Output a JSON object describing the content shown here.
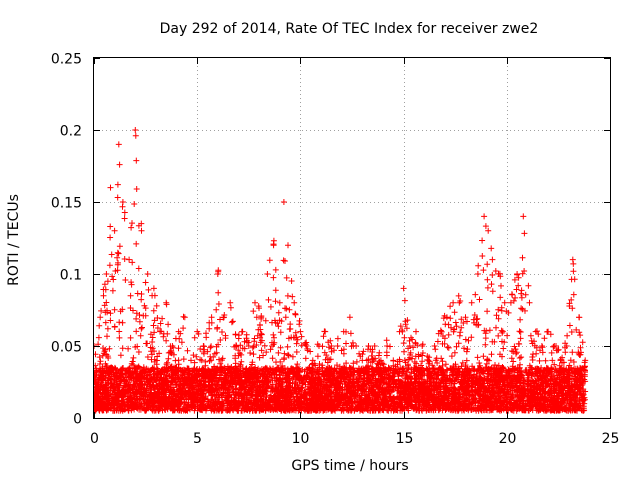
{
  "chart_data": {
    "type": "scatter",
    "title": "Day 292 of 2014, Rate Of TEC Index for receiver zwe2",
    "xlabel": "GPS time / hours",
    "ylabel": "ROTI / TECUs",
    "xlim": [
      0,
      25
    ],
    "ylim": [
      0,
      0.25
    ],
    "xticks": [
      "0",
      "5",
      "10",
      "15",
      "20",
      "25"
    ],
    "yticks": [
      "0",
      "0.05",
      "0.1",
      "0.15",
      "0.2",
      "0.25"
    ],
    "grid": true,
    "marker": "+",
    "series": [
      {
        "name": "ROTI",
        "color": "#ff0000",
        "envelope": {
          "x": [
            0.0,
            0.3,
            0.6,
            0.8,
            1.0,
            1.2,
            1.4,
            1.7,
            2.0,
            2.3,
            2.6,
            2.9,
            3.2,
            3.5,
            3.8,
            4.1,
            4.4,
            4.7,
            5.0,
            5.3,
            5.7,
            5.8,
            6.0,
            6.3,
            6.6,
            6.9,
            7.2,
            7.5,
            7.8,
            8.1,
            8.4,
            8.7,
            9.0,
            9.2,
            9.4,
            9.7,
            10.0,
            10.3,
            10.6,
            10.9,
            11.2,
            11.5,
            11.8,
            12.1,
            12.4,
            12.7,
            13.0,
            13.3,
            13.6,
            13.9,
            14.2,
            14.5,
            14.8,
            15.0,
            15.3,
            15.6,
            15.9,
            16.2,
            16.5,
            16.8,
            17.1,
            17.4,
            17.7,
            18.0,
            18.3,
            18.6,
            18.9,
            19.1,
            19.3,
            19.6,
            19.9,
            20.2,
            20.5,
            20.8,
            21.1,
            21.4,
            21.7,
            22.0,
            22.3,
            22.6,
            22.9,
            23.2,
            23.5,
            23.8
          ],
          "ymax": [
            0.05,
            0.07,
            0.1,
            0.16,
            0.13,
            0.19,
            0.15,
            0.11,
            0.2,
            0.13,
            0.1,
            0.09,
            0.06,
            0.08,
            0.05,
            0.06,
            0.07,
            0.04,
            0.06,
            0.05,
            0.07,
            0.03,
            0.1,
            0.07,
            0.08,
            0.05,
            0.06,
            0.05,
            0.08,
            0.07,
            0.1,
            0.12,
            0.08,
            0.15,
            0.12,
            0.08,
            0.06,
            0.05,
            0.04,
            0.05,
            0.06,
            0.05,
            0.05,
            0.06,
            0.07,
            0.05,
            0.04,
            0.05,
            0.05,
            0.04,
            0.05,
            0.04,
            0.06,
            0.09,
            0.05,
            0.06,
            0.05,
            0.04,
            0.05,
            0.06,
            0.07,
            0.08,
            0.08,
            0.07,
            0.08,
            0.1,
            0.14,
            0.13,
            0.11,
            0.1,
            0.08,
            0.08,
            0.1,
            0.14,
            0.08,
            0.06,
            0.05,
            0.06,
            0.05,
            0.04,
            0.05,
            0.11,
            0.07,
            0.04
          ]
        }
      }
    ]
  }
}
